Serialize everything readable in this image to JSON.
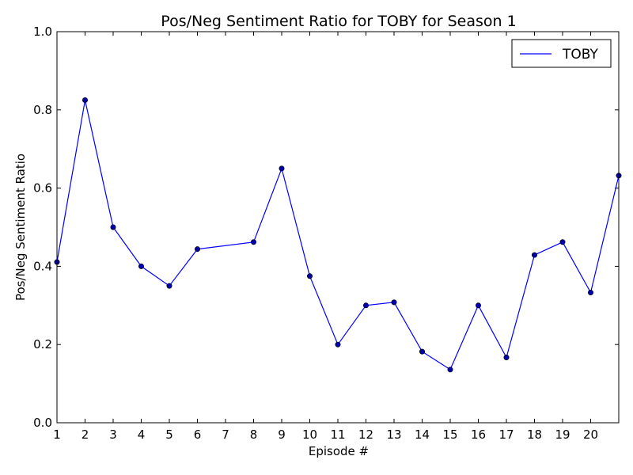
{
  "chart_data": {
    "type": "line",
    "title": "Pos/Neg Sentiment Ratio for TOBY for Season 1",
    "xlabel": "Episode #",
    "ylabel": "Pos/Neg Sentiment Ratio",
    "xlim": [
      1,
      21
    ],
    "ylim": [
      0.0,
      1.0
    ],
    "x_tick_labels": [
      "1",
      "2",
      "3",
      "4",
      "5",
      "6",
      "7",
      "8",
      "9",
      "10",
      "11",
      "12",
      "13",
      "14",
      "15",
      "16",
      "17",
      "18",
      "19",
      "20"
    ],
    "y_tick_labels": [
      "0.0",
      "0.2",
      "0.4",
      "0.6",
      "0.8",
      "1.0"
    ],
    "legend_position": "top-right",
    "grid": false,
    "series": [
      {
        "name": "TOBY",
        "color": "#0000ff",
        "marker_color": "#0000aa",
        "x": [
          1,
          2,
          3,
          4,
          5,
          6,
          8,
          9,
          10,
          11,
          12,
          13,
          14,
          15,
          16,
          17,
          18,
          19,
          20,
          21
        ],
        "y": [
          0.411,
          0.825,
          0.5,
          0.4,
          0.35,
          0.444,
          0.462,
          0.65,
          0.375,
          0.2,
          0.3,
          0.308,
          0.182,
          0.136,
          0.3,
          0.167,
          0.429,
          0.462,
          0.333,
          0.632
        ]
      }
    ]
  }
}
